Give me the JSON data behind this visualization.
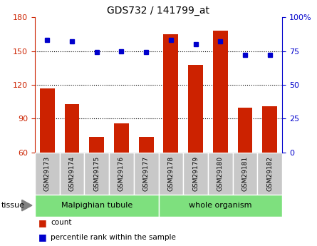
{
  "title": "GDS732 / 141799_at",
  "samples": [
    "GSM29173",
    "GSM29174",
    "GSM29175",
    "GSM29176",
    "GSM29177",
    "GSM29178",
    "GSM29179",
    "GSM29180",
    "GSM29181",
    "GSM29182"
  ],
  "counts": [
    117,
    103,
    74,
    86,
    74,
    165,
    138,
    168,
    100,
    101
  ],
  "percentiles": [
    83,
    82,
    74,
    75,
    74,
    83,
    80,
    82,
    72,
    72
  ],
  "groups": [
    {
      "label": "Malpighian tubule",
      "start": 0,
      "end": 5
    },
    {
      "label": "whole organism",
      "start": 5,
      "end": 10
    }
  ],
  "bar_color": "#CC2200",
  "marker_color": "#0000CC",
  "left_ylim": [
    60,
    180
  ],
  "left_yticks": [
    60,
    90,
    120,
    150,
    180
  ],
  "right_ylim": [
    0,
    100
  ],
  "right_yticks": [
    0,
    25,
    50,
    75,
    100
  ],
  "right_yticklabels": [
    "0",
    "25",
    "50",
    "75",
    "100%"
  ],
  "grid_lines": [
    90,
    120,
    150
  ],
  "legend_items": [
    "count",
    "percentile rank within the sample"
  ],
  "bar_width": 0.6,
  "gray_box_color": "#C8C8C8",
  "green_color": "#7EE07E"
}
